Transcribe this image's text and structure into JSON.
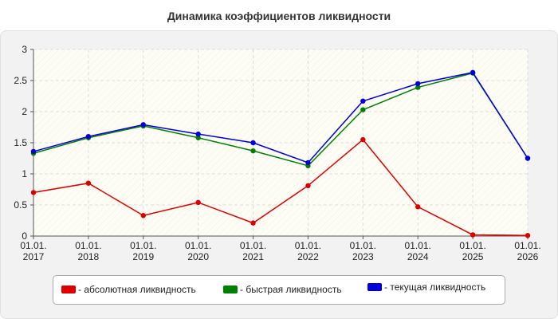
{
  "title": "Динамика коэффициентов ликвидности",
  "chart_data": {
    "type": "line",
    "title": "Динамика коэффициентов ликвидности",
    "xlabel": "",
    "ylabel": "",
    "categories": [
      [
        "01.01.",
        "2017"
      ],
      [
        "01.01.",
        "2018"
      ],
      [
        "01.01.",
        "2019"
      ],
      [
        "01.01.",
        "2020"
      ],
      [
        "01.01.",
        "2021"
      ],
      [
        "01.01.",
        "2022"
      ],
      [
        "01.01.",
        "2023"
      ],
      [
        "01.01.",
        "2024"
      ],
      [
        "01.01.",
        "2025"
      ],
      [
        "01.01.",
        "2026"
      ]
    ],
    "ylim": [
      0,
      3
    ],
    "yticks": [
      "0",
      "0.5",
      "1",
      "1.5",
      "2",
      "2.5",
      "3"
    ],
    "grid": true,
    "legend_position": "bottom",
    "series": [
      {
        "name": "- абсолютная ликвидность",
        "color": "#dd0000",
        "values": [
          0.7,
          0.85,
          0.33,
          0.54,
          0.21,
          0.81,
          1.55,
          0.47,
          0.02,
          0.01
        ]
      },
      {
        "name": "- быстрая ликвидность",
        "color": "#008000",
        "values": [
          1.33,
          1.58,
          1.77,
          1.58,
          1.37,
          1.13,
          2.03,
          2.39,
          2.62,
          1.25
        ]
      },
      {
        "name": "- текущая ликвидность",
        "color": "#0000dd",
        "values": [
          1.36,
          1.6,
          1.79,
          1.64,
          1.5,
          1.18,
          2.17,
          2.45,
          2.63,
          1.25
        ]
      }
    ]
  }
}
